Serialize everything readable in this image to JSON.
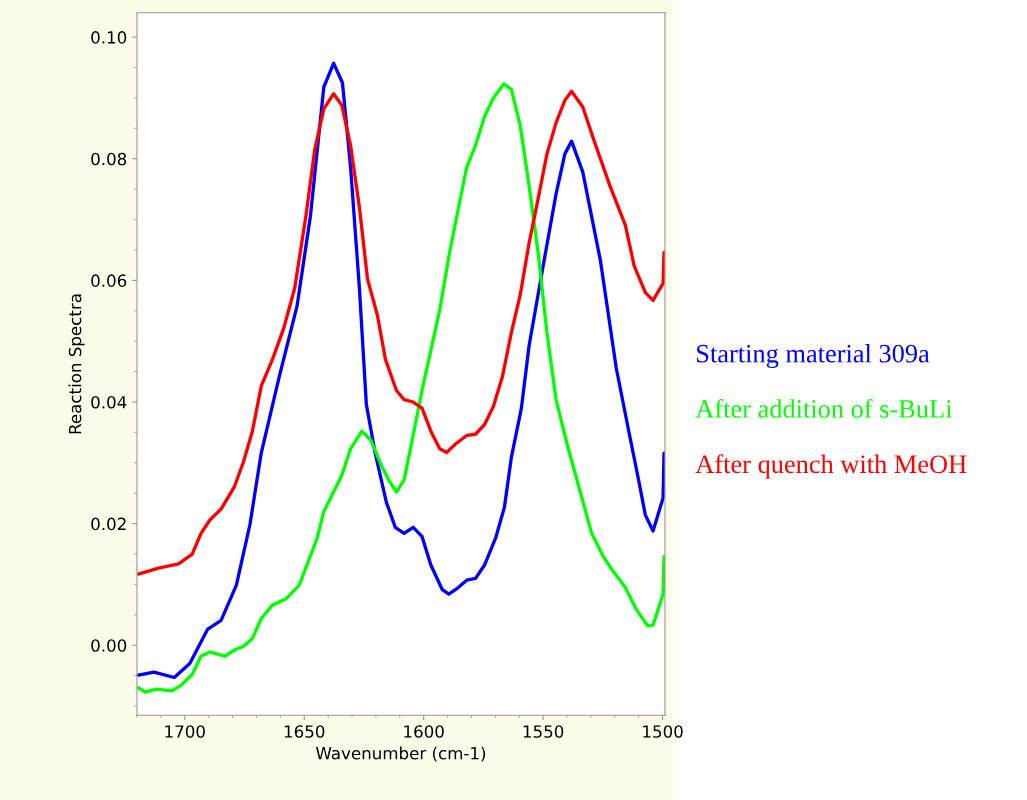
{
  "chart_data": {
    "type": "line",
    "xlabel": "Wavenumber (cm-1)",
    "ylabel": "Reaction Spectra",
    "xlim": [
      1720,
      1499
    ],
    "xticks": [
      1700,
      1650,
      1600,
      1550,
      1500
    ],
    "ylim": [
      -0.0115,
      0.104
    ],
    "yticks": [
      {
        "value": 0,
        "label": "0.00"
      },
      {
        "value": 0.02,
        "label": "0.02"
      },
      {
        "value": 0.04,
        "label": "0.04"
      },
      {
        "value": 0.06,
        "label": "0.06"
      },
      {
        "value": 0.08,
        "label": "0.08"
      },
      {
        "value": 0.1,
        "label": "0.10"
      }
    ],
    "grid": false,
    "legend": "right",
    "marker": "none",
    "line_style": "solid",
    "series": [
      {
        "name": "Starting material 309a",
        "color": "#0000ff",
        "x": [
          1719.4,
          1712.9,
          1704.4,
          1697.9,
          1690.5,
          1684.8,
          1678.4,
          1672.7,
          1668.0,
          1660.5,
          1653.0,
          1647.4,
          1641.8,
          1637.7,
          1634.0,
          1630.6,
          1626.9,
          1624.0,
          1620.3,
          1615.6,
          1611.9,
          1608.2,
          1604.4,
          1600.7,
          1597.0,
          1592.3,
          1589.5,
          1585.8,
          1582.0,
          1578.3,
          1574.5,
          1569.9,
          1566.2,
          1563.3,
          1559.1,
          1555.9,
          1550.3,
          1544.6,
          1540.9,
          1538.1,
          1533.4,
          1526.0,
          1519.4,
          1513.8,
          1510.0,
          1507.2,
          1504.0,
          1499.8,
          1499.4
        ],
        "values": [
          -0.0049,
          -0.0044,
          -0.0053,
          -0.003,
          0.0026,
          0.0041,
          0.0099,
          0.0199,
          0.0316,
          0.0441,
          0.0558,
          0.0706,
          0.0918,
          0.0957,
          0.0925,
          0.0786,
          0.0587,
          0.0396,
          0.0316,
          0.0235,
          0.0194,
          0.0184,
          0.0194,
          0.0179,
          0.0132,
          0.0092,
          0.0084,
          0.0094,
          0.0107,
          0.011,
          0.0132,
          0.0176,
          0.0227,
          0.0309,
          0.039,
          0.0492,
          0.0617,
          0.0742,
          0.0808,
          0.0829,
          0.0778,
          0.0632,
          0.0456,
          0.0345,
          0.0271,
          0.0214,
          0.0188,
          0.0242,
          0.0316
        ]
      },
      {
        "name": "After addition of s-BuLi",
        "color": "#00ff00",
        "x": [
          1719.4,
          1716.6,
          1711.9,
          1705.4,
          1701.6,
          1696.9,
          1693.2,
          1689.5,
          1683.3,
          1678.8,
          1675.5,
          1671.7,
          1668.0,
          1663.3,
          1657.7,
          1652.1,
          1647.4,
          1644.6,
          1641.8,
          1636.2,
          1634.3,
          1630.6,
          1625.9,
          1622.2,
          1617.5,
          1614.7,
          1611.4,
          1608.2,
          1604.4,
          1600.7,
          1597.0,
          1593.3,
          1589.5,
          1585.8,
          1582.0,
          1578.3,
          1574.5,
          1570.8,
          1566.5,
          1563.3,
          1559.6,
          1555.9,
          1552.1,
          1548.4,
          1544.6,
          1540.0,
          1534.3,
          1529.7,
          1525.0,
          1521.3,
          1515.6,
          1511.0,
          1506.3,
          1504.0,
          1499.8,
          1499.4
        ],
        "values": [
          -0.007,
          -0.0077,
          -0.0072,
          -0.0075,
          -0.0066,
          -0.0048,
          -0.0018,
          -0.0011,
          -0.0018,
          -0.0007,
          -0.0002,
          0.0011,
          0.0044,
          0.0066,
          0.0076,
          0.0099,
          0.0147,
          0.0176,
          0.022,
          0.0264,
          0.0279,
          0.0323,
          0.0352,
          0.0338,
          0.0294,
          0.0272,
          0.0252,
          0.0272,
          0.0345,
          0.0419,
          0.0485,
          0.0551,
          0.0639,
          0.0712,
          0.0786,
          0.0822,
          0.087,
          0.09,
          0.0923,
          0.0914,
          0.0855,
          0.0756,
          0.0646,
          0.0514,
          0.0404,
          0.0331,
          0.025,
          0.0184,
          0.0147,
          0.0125,
          0.0095,
          0.0059,
          0.0032,
          0.0033,
          0.0084,
          0.0146
        ]
      },
      {
        "name": "After quench with MeOH",
        "color": "#ff0000",
        "x": [
          1719.4,
          1711.0,
          1702.6,
          1696.9,
          1693.2,
          1689.5,
          1684.8,
          1679.2,
          1675.5,
          1671.7,
          1668.0,
          1663.3,
          1658.6,
          1654.0,
          1649.3,
          1645.6,
          1641.8,
          1637.7,
          1634.3,
          1630.6,
          1626.9,
          1623.5,
          1619.4,
          1616.0,
          1611.4,
          1608.2,
          1604.4,
          1600.7,
          1597.0,
          1593.3,
          1590.4,
          1586.7,
          1582.0,
          1578.3,
          1574.5,
          1570.8,
          1567.1,
          1563.3,
          1559.6,
          1555.9,
          1552.1,
          1548.4,
          1544.6,
          1540.9,
          1538.1,
          1533.4,
          1528.7,
          1522.2,
          1515.6,
          1511.9,
          1507.2,
          1504.0,
          1499.8,
          1499.4
        ],
        "values": [
          0.0117,
          0.0127,
          0.0134,
          0.015,
          0.0184,
          0.0206,
          0.0224,
          0.0261,
          0.0301,
          0.0352,
          0.0426,
          0.047,
          0.0521,
          0.0587,
          0.0706,
          0.0815,
          0.0882,
          0.0907,
          0.0888,
          0.0822,
          0.072,
          0.0602,
          0.0543,
          0.047,
          0.0419,
          0.0404,
          0.04,
          0.039,
          0.0352,
          0.0323,
          0.0317,
          0.0331,
          0.0345,
          0.0347,
          0.0363,
          0.0393,
          0.0441,
          0.0514,
          0.0576,
          0.0661,
          0.0734,
          0.0808,
          0.0859,
          0.0896,
          0.0911,
          0.0885,
          0.083,
          0.0757,
          0.0691,
          0.0624,
          0.058,
          0.0567,
          0.0595,
          0.0646
        ]
      }
    ]
  }
}
